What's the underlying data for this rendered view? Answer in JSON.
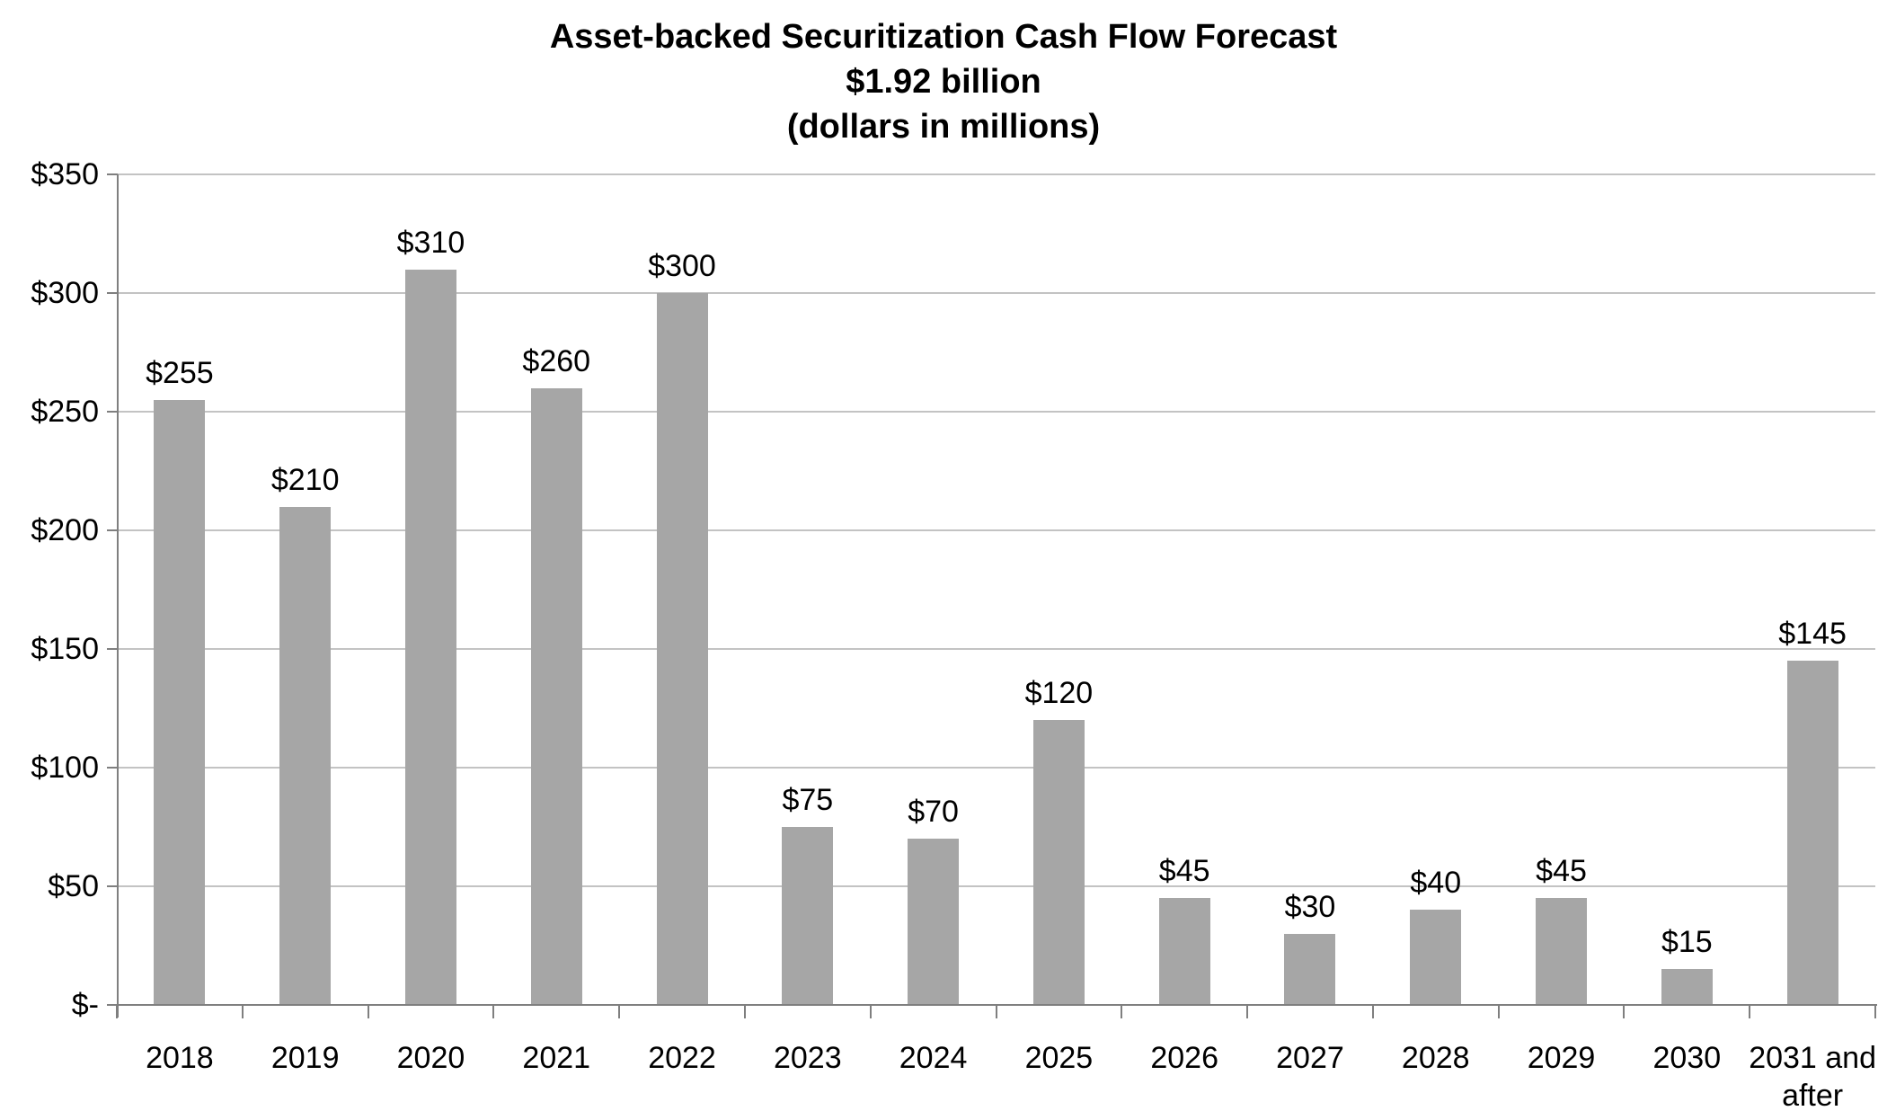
{
  "title": {
    "line1": "Asset-backed Securitization Cash Flow Forecast",
    "line2": "$1.92 billion",
    "line3": "(dollars in millions)"
  },
  "chart_data": {
    "type": "bar",
    "title": "Asset-backed Securitization Cash Flow Forecast",
    "subtitle": "$1.92 billion",
    "units_note": "(dollars in millions)",
    "categories": [
      "2018",
      "2019",
      "2020",
      "2021",
      "2022",
      "2023",
      "2024",
      "2025",
      "2026",
      "2027",
      "2028",
      "2029",
      "2030",
      "2031 and after"
    ],
    "values": [
      255,
      210,
      310,
      260,
      300,
      75,
      70,
      120,
      45,
      30,
      40,
      45,
      15,
      145
    ],
    "data_labels": [
      "$255",
      "$210",
      "$310",
      "$260",
      "$300",
      "$75",
      "$70",
      "$120",
      "$45",
      "$30",
      "$40",
      "$45",
      "$15",
      "$145"
    ],
    "xlabel": "",
    "ylabel": "",
    "ylim": [
      0,
      350
    ],
    "y_tick_values": [
      350,
      300,
      250,
      200,
      150,
      100,
      50,
      0
    ],
    "y_tick_labels": [
      "$350",
      "$300",
      "$250",
      "$200",
      "$150",
      "$100",
      "$50",
      "$-"
    ],
    "grid": true,
    "legend": "none",
    "bar_color": "#a6a6a6",
    "gridline_color": "#c3c3c3",
    "axis_color": "#7f7f7f",
    "text_color": "#000000",
    "background_color": "#ffffff"
  }
}
